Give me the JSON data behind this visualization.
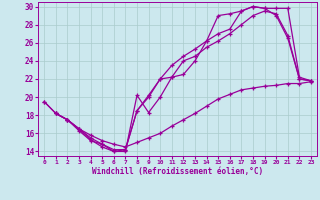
{
  "xlabel": "Windchill (Refroidissement éolien,°C)",
  "xlim": [
    -0.5,
    23.5
  ],
  "ylim": [
    13.5,
    30.5
  ],
  "xticks": [
    0,
    1,
    2,
    3,
    4,
    5,
    6,
    7,
    8,
    9,
    10,
    11,
    12,
    13,
    14,
    15,
    16,
    17,
    18,
    19,
    20,
    21,
    22,
    23
  ],
  "yticks": [
    14,
    16,
    18,
    20,
    22,
    24,
    26,
    28,
    30
  ],
  "bg_color": "#cce8ee",
  "line_color": "#990099",
  "grid_color": "#aacccc",
  "lines": [
    {
      "x": [
        0,
        1,
        2,
        3,
        4,
        5,
        6,
        7,
        8,
        9,
        10,
        11,
        12,
        13,
        14,
        15,
        16,
        17,
        18,
        19,
        20,
        21,
        22,
        23
      ],
      "y": [
        19.5,
        18.2,
        17.5,
        16.3,
        15.2,
        14.8,
        14.0,
        14.2,
        18.5,
        20.0,
        22.0,
        23.5,
        24.5,
        25.3,
        26.2,
        27.0,
        27.5,
        29.5,
        30.0,
        29.8,
        29.8,
        29.8,
        22.2,
        21.8
      ]
    },
    {
      "x": [
        0,
        1,
        2,
        3,
        4,
        5,
        6,
        7,
        8,
        9,
        10,
        11,
        12,
        13,
        14,
        15,
        16,
        17,
        18,
        19,
        20,
        21,
        22,
        23
      ],
      "y": [
        19.5,
        18.2,
        17.5,
        16.5,
        15.5,
        14.8,
        14.2,
        14.2,
        18.5,
        20.2,
        22.0,
        22.2,
        24.0,
        24.5,
        25.5,
        26.2,
        27.0,
        28.0,
        29.0,
        29.5,
        29.2,
        26.8,
        22.0,
        21.8
      ]
    },
    {
      "x": [
        1,
        2,
        3,
        4,
        5,
        6,
        7,
        8,
        9,
        10,
        11,
        12,
        13,
        14,
        15,
        16,
        17,
        18,
        19,
        20,
        21,
        22,
        23
      ],
      "y": [
        18.2,
        17.5,
        16.5,
        15.3,
        14.5,
        14.0,
        14.0,
        20.2,
        18.3,
        20.0,
        22.2,
        22.5,
        24.0,
        26.2,
        29.0,
        29.2,
        29.5,
        30.0,
        29.8,
        29.0,
        26.5,
        22.0,
        21.8
      ]
    },
    {
      "x": [
        1,
        2,
        3,
        4,
        5,
        6,
        7,
        8,
        9,
        10,
        11,
        12,
        13,
        14,
        15,
        16,
        17,
        18,
        19,
        20,
        21,
        22,
        23
      ],
      "y": [
        18.2,
        17.5,
        16.5,
        15.8,
        15.2,
        14.8,
        14.5,
        15.0,
        15.5,
        16.0,
        16.8,
        17.5,
        18.2,
        19.0,
        19.8,
        20.3,
        20.8,
        21.0,
        21.2,
        21.3,
        21.5,
        21.5,
        21.7
      ]
    }
  ]
}
